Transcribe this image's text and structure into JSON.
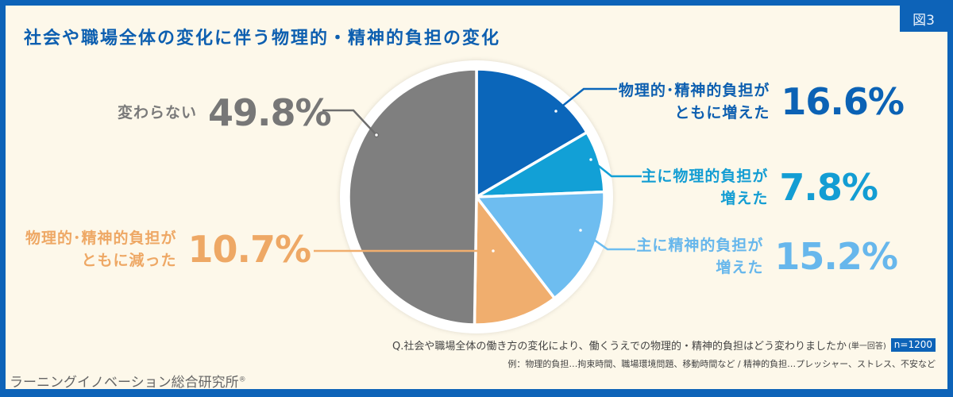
{
  "figure_tag": "図3",
  "title": "社会や職場全体の変化に伴う物理的・精神的負担の変化",
  "question": "Q.社会や職場全体の働き方の変化により、働くうえでの物理的・精神的負担はどう変わりましたか",
  "question_note": "(単一回答)",
  "sample_size": "n=1200",
  "example_note": "例：物理的負担…拘束時間、職場環境問題、移動時間など / 精神的負担…プレッシャー、ストレス、不安など",
  "brand": "ラーニングイノベーション総合研究所",
  "brand_mark": "®",
  "labels": {
    "both_up": {
      "line1": "物理的･精神的負担が",
      "line2": "ともに増えた",
      "pct": "16.6%"
    },
    "phys_up": {
      "line1": "主に物理的負担が",
      "line2": "増えた",
      "pct": "7.8%"
    },
    "mental_up": {
      "line1": "主に精神的負担が",
      "line2": "増えた",
      "pct": "15.2%"
    },
    "both_down": {
      "line1": "物理的･精神的負担が",
      "line2": "ともに減った",
      "pct": "10.7%"
    },
    "unchanged": {
      "line1": "変わらない",
      "pct": "49.8%"
    }
  },
  "colors": {
    "both_up": "#0b66ba",
    "phys_up": "#12a0d6",
    "mental_up": "#6ebdf0",
    "both_down": "#f0ae6e",
    "unchanged": "#7f7f7f"
  },
  "chart_data": {
    "type": "pie",
    "title": "社会や職場全体の変化に伴う物理的・精神的負担の変化",
    "categories": [
      "物理的・精神的負担がともに増えた",
      "主に物理的負担が増えた",
      "主に精神的負担が増えた",
      "物理的・精神的負担がともに減った",
      "変わらない"
    ],
    "values": [
      16.6,
      7.8,
      15.2,
      10.7,
      49.8
    ],
    "unit": "%",
    "start_angle": "12 o'clock, clockwise",
    "n": 1200
  }
}
